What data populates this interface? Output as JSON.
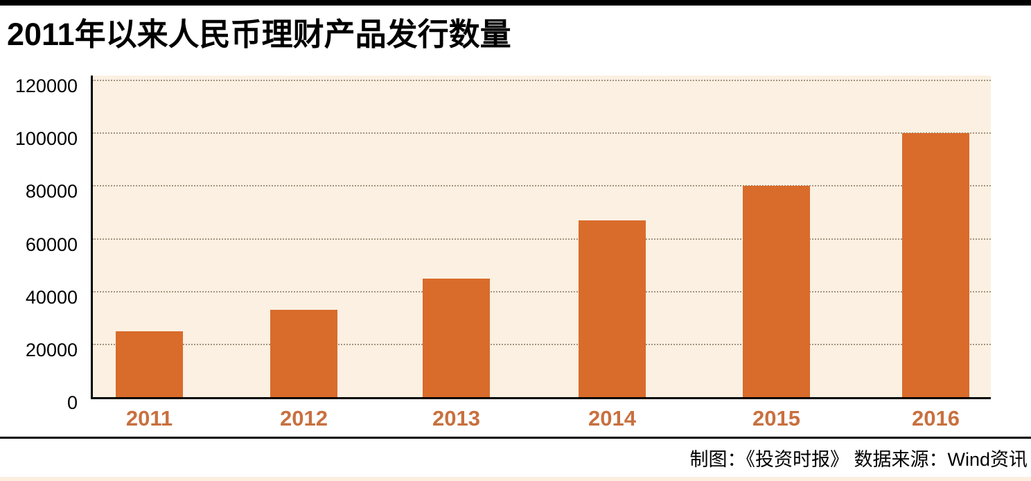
{
  "page": {
    "title": "2011年以来人民币理财产品发行数量",
    "credit": "制图：《投资时报》  数据来源：Wind资讯"
  },
  "colors": {
    "bar": "#d96b2b",
    "year_labels": "#c8703f",
    "plot_background": "#fbf0e2",
    "gridline": "#a3937f",
    "axis": "#000000",
    "top_bar": "#000000",
    "footer_divider": "#000000",
    "bottom_strip": "#fcefe0",
    "title_text": "#000000",
    "credit_text": "#000000"
  },
  "chart_data": {
    "type": "bar",
    "title": "2011年以来人民币理财产品发行数量",
    "categories": [
      "2011",
      "2012",
      "2013",
      "2014",
      "2015",
      "2016"
    ],
    "values": [
      25000,
      33000,
      45000,
      67000,
      80000,
      100000
    ],
    "xlabel": "",
    "ylabel": "",
    "ylim": [
      0,
      120000
    ],
    "yticks": [
      0,
      20000,
      40000,
      60000,
      80000,
      100000,
      120000
    ],
    "grid": "horizontal-dotted",
    "legend_position": "none",
    "bar_color": "#d96b2b",
    "credit_note": "制图：《投资时报》",
    "source_note": "数据来源：Wind资讯"
  }
}
